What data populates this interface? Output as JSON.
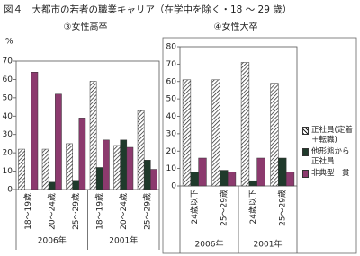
{
  "figure": {
    "title": "図４　大都市の若者の職業キャリア（在学中を除く・18 ～ 29 歳）"
  },
  "chart_data": [
    {
      "type": "bar",
      "title": "③女性高卒",
      "y_label": "%",
      "categories": [
        "18～19歳",
        "20～24歳",
        "25～29歳",
        "18～19歳",
        "20～24歳",
        "25～29歳"
      ],
      "groups": [
        "2006年",
        "2001年"
      ],
      "series": [
        {
          "color": "hatch",
          "values": [
            22,
            22,
            25,
            59,
            24,
            43
          ]
        },
        {
          "color": "#1f3a2b",
          "values": [
            0,
            4,
            5,
            12,
            27,
            16
          ]
        },
        {
          "color": "#8c3a6e",
          "values": [
            64,
            52,
            39,
            27,
            23,
            11
          ]
        }
      ],
      "ylim": [
        0,
        70
      ],
      "yticks": [
        0,
        10,
        20,
        30,
        40,
        50,
        60,
        70
      ]
    },
    {
      "type": "bar",
      "title": "④女性大卒",
      "categories": [
        "24歳以下",
        "25～29歳",
        "24歳以下",
        "25～29歳"
      ],
      "groups": [
        "2006年",
        "2001年"
      ],
      "series": [
        {
          "name": "正社員(定着＋転職)",
          "color": "hatch",
          "values": [
            61,
            61,
            71,
            59
          ]
        },
        {
          "name": "他形態から正社員",
          "color": "#1f3a2b",
          "values": [
            8,
            9,
            3,
            16
          ]
        },
        {
          "name": "非典型一貫",
          "color": "#8c3a6e",
          "values": [
            16,
            8,
            16,
            8
          ]
        }
      ],
      "ylim": [
        0,
        80
      ],
      "yticks": [
        0,
        10,
        20,
        30,
        40,
        50,
        60,
        70,
        80
      ]
    }
  ]
}
